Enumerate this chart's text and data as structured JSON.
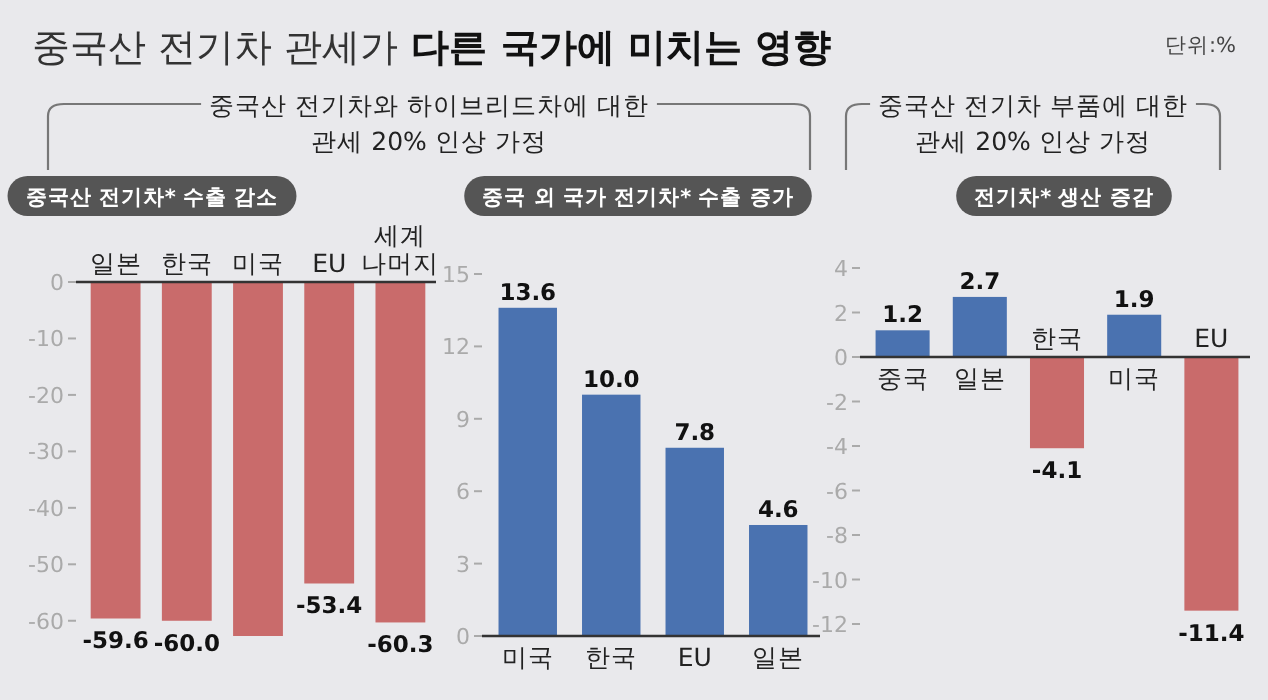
{
  "chart_data": [
    {
      "type": "bar",
      "title": "중국산 전기차* 수출 감소",
      "annotations": [
        "중국산 전기차 관세가",
        "다른 국가에 미치는 영향",
        "단위:%",
        "중국산 전기차와 하이브리드차에 대한 관세 20% 인상 가정"
      ],
      "categories": [
        "일본",
        "한국",
        "미국",
        "EU",
        "세계 나머지"
      ],
      "values": [
        -59.6,
        -60.0,
        -62.7,
        -53.4,
        -60.3
      ],
      "value_labels": [
        "-59.6",
        "-60.0",
        null,
        "-53.4",
        "-60.3"
      ],
      "color": "#c96b6b",
      "ylim": [
        -62.7,
        0
      ],
      "yticks": [
        0,
        -10,
        -20,
        -30,
        -40,
        -50,
        -60
      ],
      "grid": false
    },
    {
      "type": "bar",
      "title": "중국 외 국가 전기차* 수출 증가",
      "categories": [
        "미국",
        "한국",
        "EU",
        "일본"
      ],
      "values": [
        13.6,
        10.0,
        7.8,
        4.6
      ],
      "color": "#4a72b0",
      "value_labels": [
        "13.6",
        "10.0",
        "7.8",
        "4.6"
      ],
      "ylim": [
        0,
        15
      ],
      "yticks": [
        0,
        3,
        6,
        9,
        12,
        15
      ],
      "grid": false
    },
    {
      "type": "bar",
      "title": "전기차* 생산 증감",
      "annotations": [
        "중국산 전기차 부품에 대한 관세 20% 인상 가정"
      ],
      "categories": [
        "중국",
        "일본",
        "한국",
        "미국",
        "EU"
      ],
      "values": [
        1.2,
        2.7,
        -4.1,
        1.9,
        -11.4
      ],
      "colors": [
        "#4a72b0",
        "#4a72b0",
        "#c96b6b",
        "#4a72b0",
        "#c96b6b"
      ],
      "value_labels": [
        "1.2",
        "2.7",
        "-4.1",
        "1.9",
        "-11.4"
      ],
      "ylim": [
        -12,
        4
      ],
      "yticks": [
        4,
        2,
        0,
        -2,
        -4,
        -6,
        -8,
        -10,
        -12
      ],
      "grid": false
    }
  ]
}
